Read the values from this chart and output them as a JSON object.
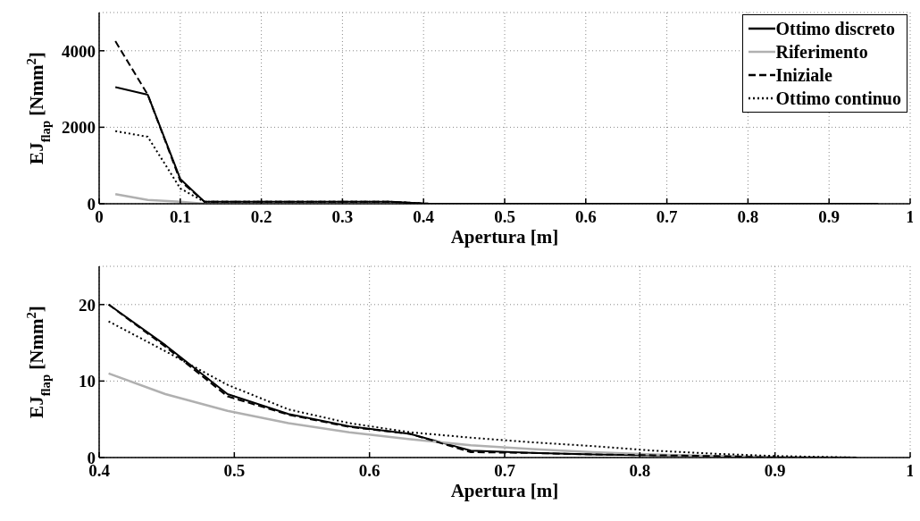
{
  "chart_data": [
    {
      "type": "line",
      "xlabel": "Apertura [m]",
      "ylabel": "EJ$_{flap}$ [Nmm$^{2}$]",
      "x": [
        0.02,
        0.06,
        0.1,
        0.13,
        0.18,
        0.23,
        0.27,
        0.32,
        0.36,
        0.407,
        0.449,
        0.495,
        0.54,
        0.585,
        0.63,
        0.675,
        0.72,
        0.765,
        0.81,
        0.855,
        0.9,
        0.96
      ],
      "xlim": [
        0,
        1
      ],
      "xticks": [
        0,
        0.1,
        0.2,
        0.3,
        0.4,
        0.5,
        0.6,
        0.7,
        0.8,
        0.9,
        1
      ],
      "ylim": [
        0,
        5000
      ],
      "yticks": [
        0,
        2000,
        4000
      ],
      "grid": true,
      "legend": "top right",
      "marker": "none",
      "series": [
        {
          "name": "Ottimo discreto",
          "color": "#000000",
          "line_style": "solid",
          "values": [
            3050,
            2850,
            650,
            50,
            50,
            50,
            50,
            50,
            50,
            0,
            0,
            0,
            0,
            0,
            0,
            0,
            0,
            0,
            0,
            0,
            0,
            0
          ]
        },
        {
          "name": "Riferimento",
          "color": "#b0b0b0",
          "line_style": "solid",
          "values": [
            250,
            100,
            50,
            0,
            null,
            null,
            null,
            null,
            null,
            null,
            null,
            null,
            null,
            null,
            null,
            null,
            null,
            null,
            null,
            null,
            null,
            null
          ]
        },
        {
          "name": "Iniziale",
          "color": "#000000",
          "line_style": "dashed",
          "values": [
            4250,
            2850,
            600,
            50,
            50,
            50,
            50,
            50,
            50,
            0,
            0,
            0,
            0,
            0,
            0,
            0,
            0,
            0,
            0,
            0,
            0,
            0
          ]
        },
        {
          "name": "Ottimo continuo",
          "color": "#000000",
          "line_style": "dotted",
          "values": [
            1900,
            1750,
            400,
            50,
            50,
            50,
            50,
            50,
            50,
            0,
            0,
            0,
            0,
            0,
            0,
            0,
            0,
            0,
            0,
            0,
            0,
            0
          ]
        }
      ]
    },
    {
      "type": "line",
      "xlabel": "Apertura [m]",
      "ylabel": "EJ$_{flap}$ [Nmm$^{2}$]",
      "x": [
        0.407,
        0.449,
        0.495,
        0.54,
        0.585,
        0.63,
        0.675,
        0.72,
        0.765,
        0.81,
        0.855,
        0.9,
        0.96
      ],
      "xlim": [
        0.4,
        1
      ],
      "xticks": [
        0.4,
        0.5,
        0.6,
        0.7,
        0.8,
        0.9,
        1
      ],
      "ylim": [
        0,
        25
      ],
      "yticks": [
        0,
        10,
        20
      ],
      "grid": true,
      "marker": "none",
      "series": [
        {
          "color": "#000000",
          "line_style": "solid",
          "values": [
            20,
            14.7,
            8.3,
            5.7,
            4.1,
            3.1,
            0.9,
            0.6,
            0.4,
            0.3,
            0.2,
            0,
            0
          ]
        },
        {
          "color": "#b0b0b0",
          "line_style": "solid",
          "values": [
            11,
            8.3,
            6.1,
            4.5,
            3.3,
            2.4,
            1.6,
            1.1,
            0.7,
            0.4,
            0.2,
            0.1,
            0
          ]
        },
        {
          "color": "#000000",
          "line_style": "dashed",
          "values": [
            20,
            14.5,
            8.0,
            5.6,
            4.0,
            3.1,
            0.7,
            0.6,
            0.4,
            0.3,
            0.2,
            0,
            0
          ]
        },
        {
          "color": "#000000",
          "line_style": "dotted",
          "values": [
            17.8,
            13.9,
            9.5,
            6.3,
            4.5,
            3.3,
            2.6,
            2.0,
            1.5,
            0.9,
            0.5,
            0.2,
            0
          ]
        }
      ]
    }
  ]
}
